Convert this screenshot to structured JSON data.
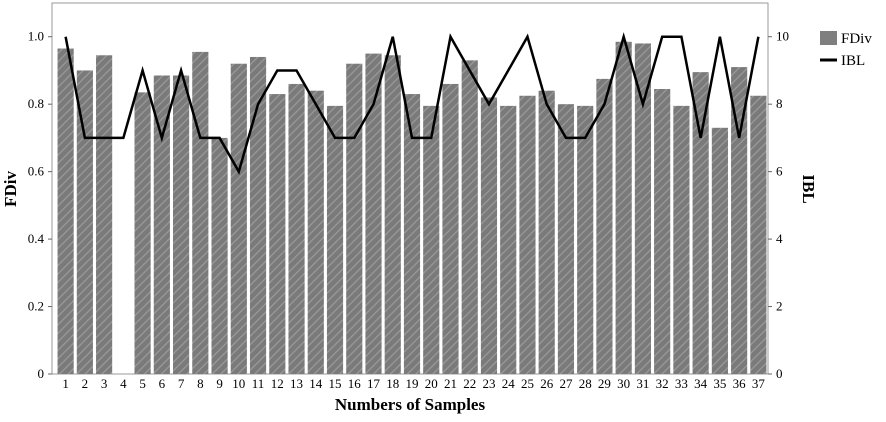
{
  "chart_data": {
    "type": "bar",
    "xlabel": "Numbers of Samples",
    "ylabel_left": "FDiv",
    "ylabel_right": "IBL",
    "ylim_left": [
      0,
      1.1
    ],
    "ylim_right": [
      0,
      11
    ],
    "yticks_left": [
      "0",
      "0.2",
      "0.4",
      "0.6",
      "0.8",
      "1.0"
    ],
    "yticks_right": [
      "0",
      "2",
      "4",
      "6",
      "8",
      "10"
    ],
    "legend_position": "top-right",
    "categories": [
      "1",
      "2",
      "3",
      "4",
      "5",
      "6",
      "7",
      "8",
      "9",
      "10",
      "11",
      "12",
      "13",
      "14",
      "15",
      "16",
      "17",
      "18",
      "19",
      "20",
      "21",
      "22",
      "23",
      "24",
      "25",
      "26",
      "27",
      "28",
      "29",
      "30",
      "31",
      "32",
      "33",
      "34",
      "35",
      "36",
      "37"
    ],
    "series": [
      {
        "name": "FDiv",
        "type": "bar",
        "axis": "left",
        "color": "#7f7f7f",
        "values": [
          0.965,
          0.9,
          0.945,
          null,
          0.835,
          0.885,
          0.885,
          0.955,
          0.7,
          0.92,
          0.94,
          0.83,
          0.86,
          0.84,
          0.795,
          0.92,
          0.95,
          0.945,
          0.83,
          0.795,
          0.86,
          0.93,
          0.82,
          0.795,
          0.825,
          0.84,
          0.8,
          0.795,
          0.875,
          0.985,
          0.98,
          0.845,
          0.795,
          0.895,
          0.73,
          0.91,
          0.825
        ]
      },
      {
        "name": "IBL",
        "type": "line",
        "axis": "right",
        "color": "#000000",
        "values": [
          10,
          7,
          7,
          7,
          9,
          7,
          9,
          7,
          7,
          6,
          8,
          9,
          9,
          8,
          7,
          7,
          8,
          10,
          7,
          7,
          10,
          9,
          8,
          9,
          10,
          8,
          7,
          7,
          8,
          10,
          8,
          10,
          10,
          7,
          10,
          7,
          10
        ]
      }
    ]
  }
}
